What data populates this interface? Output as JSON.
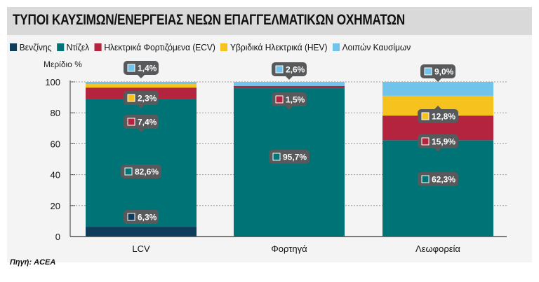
{
  "title": "ΤΥΠΟΙ ΚΑΥΣΙΜΩΝ/ΕΝΕΡΓΕΙΑΣ ΝΕΩΝ ΕΠΑΓΓΕΛΜΑΤΙΚΩΝ ΟΧΗΜΑΤΩΝ",
  "source": "Πηγή: ACEA",
  "chart_data": {
    "type": "bar",
    "stacked": true,
    "title": "ΤΥΠΟΙ ΚΑΥΣΙΜΩΝ/ΕΝΕΡΓΕΙΑΣ ΝΕΩΝ ΕΠΑΓΓΕΛΜΑΤΙΚΩΝ ΟΧΗΜΑΤΩΝ",
    "ylabel": "Μερίδιο %",
    "xlabel": "",
    "ylim": [
      0,
      100
    ],
    "yticks": [
      0,
      20,
      40,
      60,
      80,
      100
    ],
    "grid": true,
    "legend": "top",
    "categories": [
      "LCV",
      "Φορτηγά",
      "Λεωφορεία"
    ],
    "series": [
      {
        "name": "Βενζίνης",
        "color": "#0e3d5c",
        "values": [
          6.3,
          0.2,
          0
        ],
        "labels": [
          "6,3%",
          "",
          ""
        ]
      },
      {
        "name": "Ντίζελ",
        "color": "#007377",
        "values": [
          82.6,
          95.7,
          62.3
        ],
        "labels": [
          "82,6%",
          "95,7%",
          "62,3%"
        ]
      },
      {
        "name": "Ηλεκτρικά Φορτιζόμενα (ECV)",
        "color": "#b5243f",
        "values": [
          7.4,
          1.5,
          15.9
        ],
        "labels": [
          "7,4%",
          "1,5%",
          "15,9%"
        ]
      },
      {
        "name": "Υβριδικά Ηλεκτρικά (HEV)",
        "color": "#f6c21d",
        "values": [
          2.3,
          0,
          12.8
        ],
        "labels": [
          "2,3%",
          "",
          "12,8%"
        ]
      },
      {
        "name": "Λοιπών Καυσίμων",
        "color": "#70c3ea",
        "values": [
          1.4,
          2.6,
          9.0
        ],
        "labels": [
          "1,4%",
          "2,6%",
          "9,0%"
        ]
      }
    ]
  }
}
